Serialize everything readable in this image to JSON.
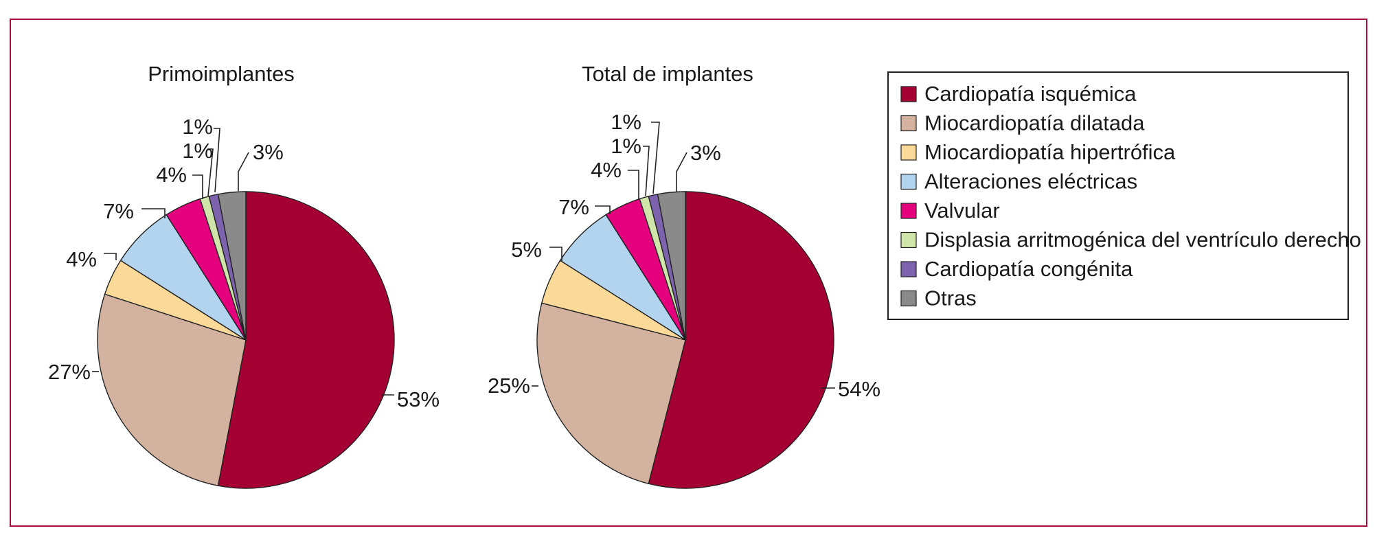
{
  "colors": {
    "frame": "#a0103a",
    "leader": "#222222",
    "slice_border": "#222222"
  },
  "legend": {
    "items": [
      {
        "label": "Cardiopatía isquémica",
        "color": "#a50034"
      },
      {
        "label": "Miocardiopatía dilatada",
        "color": "#d3b3a0"
      },
      {
        "label": "Miocardiopatía hipertrófica",
        "color": "#fbd999"
      },
      {
        "label": "Alteraciones eléctricas",
        "color": "#b3d4ef"
      },
      {
        "label": "Valvular",
        "color": "#e5007e"
      },
      {
        "label": "Displasia arritmogénica del ventrículo derecho",
        "color": "#cfe5a9"
      },
      {
        "label": "Cardiopatía congénita",
        "color": "#7d62ad"
      },
      {
        "label": "Otras",
        "color": "#8a8a8a"
      }
    ],
    "placement": "right"
  },
  "chart_data": [
    {
      "type": "pie",
      "title": "Primoimplantes",
      "categories": [
        "Cardiopatía isquémica",
        "Miocardiopatía dilatada",
        "Miocardiopatía hipertrófica",
        "Alteraciones eléctricas",
        "Valvular",
        "Displasia arritmogénica del ventrículo derecho",
        "Cardiopatía congénita",
        "Otras"
      ],
      "values": [
        53,
        27,
        4,
        7,
        4,
        1,
        1,
        3
      ],
      "labels": [
        "53%",
        "27%",
        "4%",
        "7%",
        "4%",
        "1%",
        "1%",
        "3%"
      ]
    },
    {
      "type": "pie",
      "title": "Total de implantes",
      "categories": [
        "Cardiopatía isquémica",
        "Miocardiopatía dilatada",
        "Miocardiopatía hipertrófica",
        "Alteraciones eléctricas",
        "Valvular",
        "Displasia arritmogénica del ventrículo derecho",
        "Cardiopatía congénita",
        "Otras"
      ],
      "values": [
        54,
        25,
        5,
        7,
        4,
        1,
        1,
        3
      ],
      "labels": [
        "54%",
        "25%",
        "5%",
        "7%",
        "4%",
        "1%",
        "1%",
        "3%"
      ]
    }
  ]
}
